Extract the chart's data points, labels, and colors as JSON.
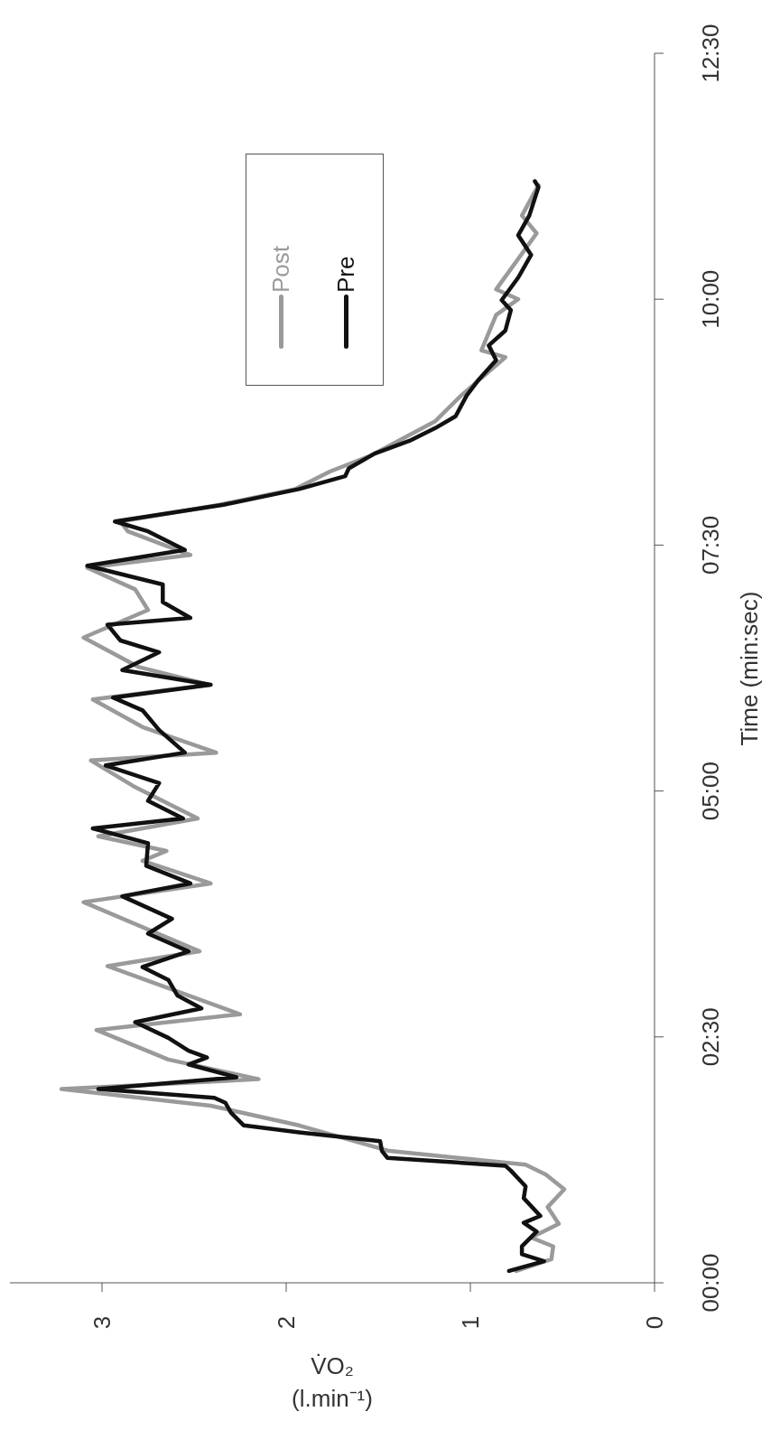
{
  "chart_data": {
    "type": "line",
    "xlabel": "V̇O₂ (l.min⁻¹)",
    "ylabel": "Time (min:sec)",
    "xlim": [
      3.5,
      0
    ],
    "xticks": [
      3,
      2,
      1,
      0
    ],
    "ylim": [
      0,
      12.5
    ],
    "yticks": [
      {
        "value": 0,
        "label": "00:00"
      },
      {
        "value": 2.5,
        "label": "02:30"
      },
      {
        "value": 5,
        "label": "05:00"
      },
      {
        "value": 7.5,
        "label": "07:30"
      },
      {
        "value": 10,
        "label": "10:00"
      },
      {
        "value": 12.5,
        "label": "12:30"
      }
    ],
    "grid": false,
    "legend": "top right",
    "series": [
      {
        "name": "Post",
        "color": "#9a9a9a",
        "values": [
          0.12,
          0.24,
          0.37,
          0.46,
          0.6,
          0.77,
          0.95,
          1.1,
          1.2,
          1.34,
          1.6,
          1.8,
          1.97,
          2.07,
          2.27,
          2.57,
          2.73,
          3.22,
          3.37,
          3.87,
          4.06,
          4.29,
          4.39,
          4.54,
          4.72,
          5.05,
          5.31,
          5.39,
          5.65,
          5.93,
          6.08,
          6.26,
          6.56,
          6.84,
          7.05,
          7.27,
          7.4,
          7.64,
          7.74,
          7.91,
          8.07,
          8.25,
          8.41,
          8.76,
          9.02,
          9.41,
          9.48,
          9.84,
          10.0,
          10.1,
          10.67,
          10.85,
          11.16
        ],
        "x": [
          0.75,
          0.56,
          0.55,
          0.67,
          0.52,
          0.58,
          0.49,
          0.59,
          0.7,
          1.44,
          1.93,
          2.41,
          3.22,
          2.15,
          2.64,
          3.03,
          2.25,
          2.97,
          2.47,
          3.1,
          2.41,
          2.78,
          2.65,
          3.02,
          2.48,
          2.83,
          3.06,
          2.38,
          2.78,
          3.05,
          2.42,
          2.8,
          3.1,
          2.75,
          2.82,
          3.08,
          2.52,
          2.86,
          2.9,
          2.36,
          1.95,
          1.76,
          1.54,
          1.19,
          1.05,
          0.81,
          0.94,
          0.86,
          0.74,
          0.86,
          0.64,
          0.72,
          0.63
        ]
      },
      {
        "name": "Pre",
        "color": "#111111",
        "values": [
          0.12,
          0.22,
          0.29,
          0.37,
          0.52,
          0.61,
          0.68,
          0.86,
          0.98,
          1.14,
          1.19,
          1.27,
          1.34,
          1.44,
          1.53,
          1.6,
          1.73,
          1.83,
          1.88,
          1.97,
          2.09,
          2.22,
          2.29,
          2.36,
          2.49,
          2.65,
          2.79,
          2.92,
          3.08,
          3.21,
          3.37,
          3.55,
          3.7,
          3.93,
          4.06,
          4.24,
          4.47,
          4.62,
          4.72,
          4.9,
          5.08,
          5.26,
          5.39,
          5.62,
          5.82,
          5.95,
          6.08,
          6.23,
          6.41,
          6.53,
          6.69,
          6.76,
          6.92,
          7.1,
          7.29,
          7.45,
          7.64,
          7.74,
          7.91,
          8.07,
          8.2,
          8.28,
          8.43,
          8.56,
          8.69,
          8.81,
          9.02,
          9.17,
          9.38,
          9.53,
          9.68,
          9.89,
          9.99,
          10.22,
          10.45,
          10.65,
          10.85,
          11.14,
          11.2
        ],
        "x": [
          0.79,
          0.6,
          0.72,
          0.72,
          0.64,
          0.71,
          0.62,
          0.71,
          0.7,
          0.78,
          0.81,
          1.45,
          1.48,
          1.49,
          1.93,
          2.23,
          2.3,
          2.33,
          2.39,
          3.02,
          2.27,
          2.53,
          2.43,
          2.53,
          2.64,
          2.82,
          2.46,
          2.59,
          2.64,
          2.78,
          2.53,
          2.75,
          2.62,
          2.89,
          2.52,
          2.76,
          2.75,
          3.05,
          2.56,
          2.75,
          2.69,
          2.98,
          2.55,
          2.69,
          2.78,
          2.94,
          2.41,
          2.89,
          2.69,
          2.9,
          2.97,
          2.52,
          2.67,
          2.67,
          3.08,
          2.55,
          2.75,
          2.93,
          2.34,
          1.93,
          1.68,
          1.66,
          1.52,
          1.33,
          1.19,
          1.08,
          1.02,
          0.96,
          0.86,
          0.9,
          0.81,
          0.78,
          0.83,
          0.74,
          0.67,
          0.74,
          0.68,
          0.63,
          0.65
        ]
      }
    ]
  }
}
